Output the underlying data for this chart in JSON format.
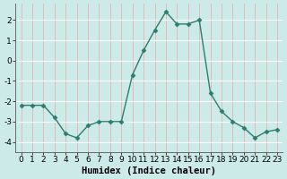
{
  "x": [
    0,
    1,
    2,
    3,
    4,
    5,
    6,
    7,
    8,
    9,
    10,
    11,
    12,
    13,
    14,
    15,
    16,
    17,
    18,
    19,
    20,
    21,
    22,
    23
  ],
  "y": [
    -2.2,
    -2.2,
    -2.2,
    -2.8,
    -3.6,
    -3.8,
    -3.2,
    -3.0,
    -3.0,
    -3.0,
    -0.7,
    0.5,
    1.5,
    2.4,
    1.8,
    1.8,
    2.0,
    -1.6,
    -2.5,
    -3.0,
    -3.3,
    -3.8,
    -3.5,
    -3.4
  ],
  "line_color": "#2d7d6e",
  "marker": "D",
  "marker_size": 2.5,
  "line_width": 1.0,
  "xlabel": "Humidex (Indice chaleur)",
  "xlim": [
    -0.5,
    23.5
  ],
  "ylim": [
    -4.5,
    2.8
  ],
  "yticks": [
    -4,
    -3,
    -2,
    -1,
    0,
    1,
    2
  ],
  "xticks": [
    0,
    1,
    2,
    3,
    4,
    5,
    6,
    7,
    8,
    9,
    10,
    11,
    12,
    13,
    14,
    15,
    16,
    17,
    18,
    19,
    20,
    21,
    22,
    23
  ],
  "bg_color": "#cceae8",
  "grid_color_h": "#ffffff",
  "grid_color_v": "#e8b0b0",
  "tick_fontsize": 6.5,
  "xlabel_fontsize": 7.5
}
